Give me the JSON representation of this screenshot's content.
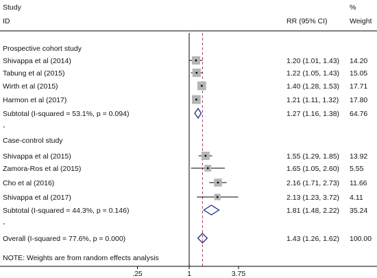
{
  "chart_data": {
    "type": "forest",
    "header": {
      "study_top": "Study",
      "study_id": "ID",
      "effect": "RR (95% CI)",
      "pct": "%",
      "weight": "Weight"
    },
    "x_scale": "log",
    "x_ticks": [
      {
        "value": 0.25,
        "label": ".25"
      },
      {
        "value": 1,
        "label": "1"
      },
      {
        "value": 3.75,
        "label": "3.75"
      }
    ],
    "reference_line": 1,
    "overall_line": 1.43,
    "groups": [
      {
        "label": "Prospective cohort study",
        "studies": [
          {
            "name": "Shivappa et al (2014)",
            "rr": 1.2,
            "lo": 1.01,
            "hi": 1.43,
            "ci_text": "1.20 (1.01, 1.43)",
            "weight": "14.20"
          },
          {
            "name": "Tabung  et al (2015)",
            "rr": 1.22,
            "lo": 1.05,
            "hi": 1.43,
            "ci_text": "1.22 (1.05, 1.43)",
            "weight": "15.05"
          },
          {
            "name": "Wirth et al (2015)",
            "rr": 1.4,
            "lo": 1.28,
            "hi": 1.53,
            "ci_text": "1.40 (1.28, 1.53)",
            "weight": "17.71"
          },
          {
            "name": "Harmon et al  (2017)",
            "rr": 1.21,
            "lo": 1.11,
            "hi": 1.32,
            "ci_text": "1.21 (1.11, 1.32)",
            "weight": "17.80"
          }
        ],
        "subtotal": {
          "label": "Subtotal  (I-squared = 53.1%, p = 0.094)",
          "rr": 1.27,
          "lo": 1.16,
          "hi": 1.38,
          "ci_text": "1.27 (1.16, 1.38)",
          "weight": "64.76"
        }
      },
      {
        "label": "Case-control study",
        "studies": [
          {
            "name": "Shivappa et al  (2015)",
            "rr": 1.55,
            "lo": 1.29,
            "hi": 1.85,
            "ci_text": "1.55 (1.29, 1.85)",
            "weight": "13.92"
          },
          {
            "name": "Zamora-Ros et al (2015)",
            "rr": 1.65,
            "lo": 1.05,
            "hi": 2.6,
            "ci_text": "1.65 (1.05, 2.60)",
            "weight": "5.55"
          },
          {
            "name": "Cho et al (2016)",
            "rr": 2.16,
            "lo": 1.71,
            "hi": 2.73,
            "ci_text": "2.16 (1.71, 2.73)",
            "weight": "11.66"
          },
          {
            "name": "Shivappa et al  (2017)",
            "rr": 2.13,
            "lo": 1.23,
            "hi": 3.72,
            "ci_text": "2.13 (1.23, 3.72)",
            "weight": "4.11"
          }
        ],
        "subtotal": {
          "label": "Subtotal  (I-squared = 44.3%, p = 0.146)",
          "rr": 1.81,
          "lo": 1.48,
          "hi": 2.22,
          "ci_text": "1.81 (1.48, 2.22)",
          "weight": "35.24"
        }
      }
    ],
    "overall": {
      "label": "Overall  (I-squared = 77.6%, p = 0.000)",
      "rr": 1.43,
      "lo": 1.26,
      "hi": 1.62,
      "ci_text": "1.43 (1.26, 1.62)",
      "weight": "100.00"
    },
    "note": "NOTE: Weights are from random effects analysis",
    "colors": {
      "text": "#111111",
      "box": "#b5b5b5",
      "diamond": "#1c2a7a",
      "overall_line": "#a0426e",
      "line": "#000000"
    }
  }
}
